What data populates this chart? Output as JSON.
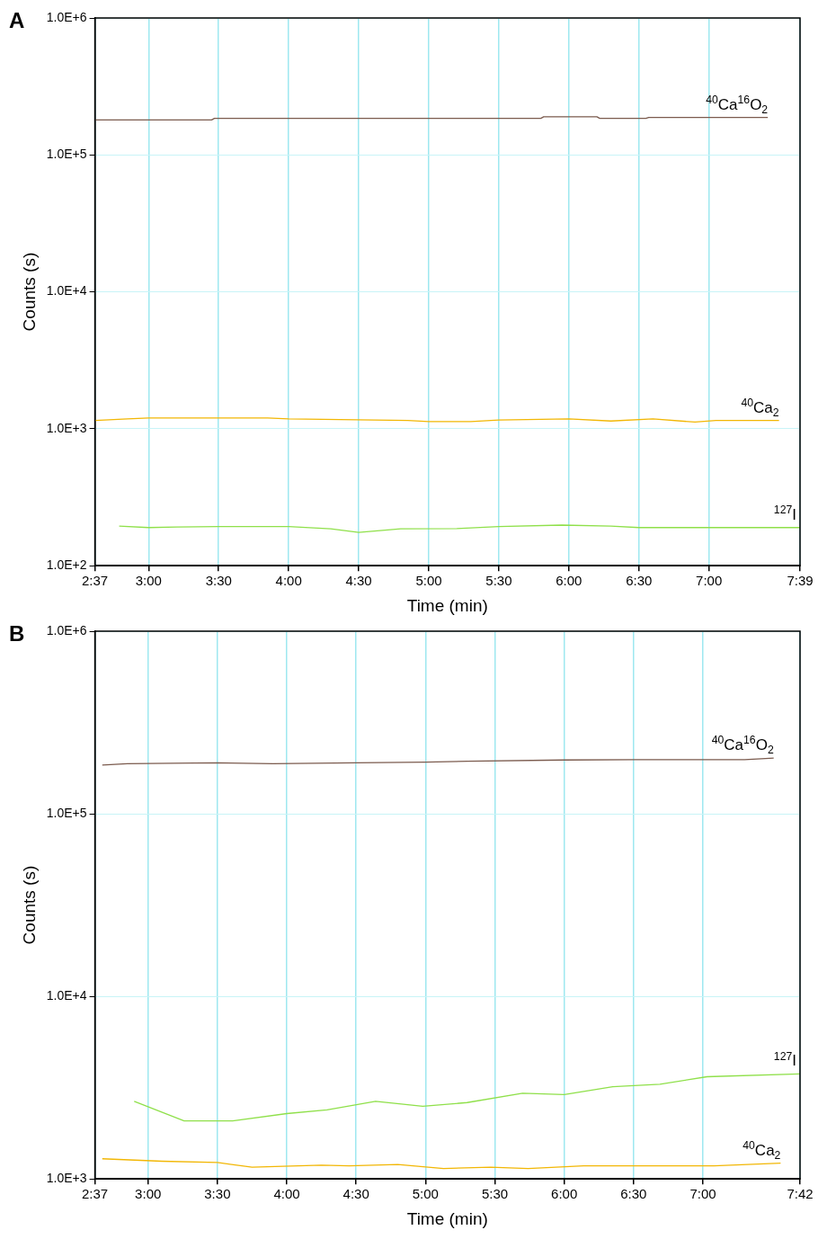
{
  "chart_data": [
    {
      "type": "line",
      "title": "A",
      "xlabel": "Time (min)",
      "ylabel": "Counts (s)",
      "log": true,
      "grid": true,
      "marker": "none",
      "xlim": [
        2.6167,
        7.65
      ],
      "xticks": [
        {
          "value": 2.6167,
          "label": "2:37"
        },
        {
          "value": 3,
          "label": "3:00"
        },
        {
          "value": 3.5,
          "label": "3:30"
        },
        {
          "value": 4,
          "label": "4:00"
        },
        {
          "value": 4.5,
          "label": "4:30"
        },
        {
          "value": 5,
          "label": "5:00"
        },
        {
          "value": 5.5,
          "label": "5:30"
        },
        {
          "value": 6,
          "label": "6:00"
        },
        {
          "value": 6.5,
          "label": "6:30"
        },
        {
          "value": 7,
          "label": "7:00"
        },
        {
          "value": 7.65,
          "label": "7:39"
        }
      ],
      "ylim": [
        100,
        1000000
      ],
      "yticks": [
        {
          "value": 100,
          "label": "1.0E+2"
        },
        {
          "value": 1000,
          "label": "1.0E+3"
        },
        {
          "value": 10000,
          "label": "1.0E+4"
        },
        {
          "value": 100000,
          "label": "1.0E+5"
        },
        {
          "value": 1000000,
          "label": "1.0E+6"
        }
      ],
      "series": [
        {
          "name": "$^{40}$Ca$^{16}$O$_{2}$",
          "color": "#7b5b4e",
          "x": [
            2.62,
            3.45,
            3.47,
            5.8,
            5.82,
            6.2,
            6.22,
            6.55,
            6.57,
            7.42
          ],
          "values": [
            180000,
            180000,
            185000,
            185000,
            190000,
            190000,
            185000,
            185000,
            188000,
            188000
          ]
        },
        {
          "name": "$^{40}$Ca$_{2}$",
          "color": "#f2b705",
          "x": [
            2.62,
            2.85,
            3.0,
            3.85,
            4.0,
            4.85,
            5.0,
            5.3,
            5.5,
            6.0,
            6.3,
            6.6,
            6.9,
            7.05,
            7.5
          ],
          "values": [
            1150,
            1180,
            1200,
            1200,
            1180,
            1150,
            1130,
            1130,
            1160,
            1180,
            1140,
            1180,
            1120,
            1150,
            1150
          ]
        },
        {
          "name": "$^{127}$I",
          "color": "#8fe04a",
          "x": [
            2.79,
            3.0,
            3.2,
            3.5,
            4.0,
            4.3,
            4.5,
            4.8,
            5.2,
            5.5,
            5.95,
            6.3,
            6.5,
            7.0,
            7.65
          ],
          "values": [
            195,
            190,
            192,
            193,
            193,
            186,
            175,
            186,
            187,
            193,
            198,
            195,
            190,
            190,
            190
          ]
        }
      ]
    },
    {
      "type": "line",
      "title": "B",
      "xlabel": "Time (min)",
      "ylabel": "Counts (s)",
      "log": true,
      "grid": true,
      "marker": "none",
      "xlim": [
        2.6167,
        7.7
      ],
      "xticks": [
        {
          "value": 2.6167,
          "label": "2:37"
        },
        {
          "value": 3,
          "label": "3:00"
        },
        {
          "value": 3.5,
          "label": "3:30"
        },
        {
          "value": 4,
          "label": "4:00"
        },
        {
          "value": 4.5,
          "label": "4:30"
        },
        {
          "value": 5,
          "label": "5:00"
        },
        {
          "value": 5.5,
          "label": "5:30"
        },
        {
          "value": 6,
          "label": "6:00"
        },
        {
          "value": 6.5,
          "label": "6:30"
        },
        {
          "value": 7,
          "label": "7:00"
        },
        {
          "value": 7.7,
          "label": "7:42"
        }
      ],
      "ylim": [
        1000,
        1000000
      ],
      "yticks": [
        {
          "value": 1000,
          "label": "1.0E+3"
        },
        {
          "value": 10000,
          "label": "1.0E+4"
        },
        {
          "value": 100000,
          "label": "1.0E+5"
        },
        {
          "value": 1000000,
          "label": "1.0E+6"
        }
      ],
      "series": [
        {
          "name": "$^{40}$Ca$^{16}$O$_{2}$",
          "color": "#7b5b4e",
          "x": [
            2.67,
            2.85,
            3.5,
            3.9,
            4.5,
            5.0,
            5.3,
            6.0,
            6.5,
            7.0,
            7.3,
            7.51
          ],
          "values": [
            185000,
            188000,
            190000,
            188000,
            190000,
            192000,
            194000,
            197000,
            198000,
            198000,
            198000,
            202000
          ]
        },
        {
          "name": "$^{127}$I",
          "color": "#8fe04a",
          "x": [
            2.9,
            3.26,
            3.61,
            4.0,
            4.29,
            4.64,
            4.98,
            5.3,
            5.7,
            6.0,
            6.35,
            6.69,
            7.03,
            7.7
          ],
          "values": [
            2660,
            2080,
            2080,
            2280,
            2390,
            2660,
            2500,
            2620,
            2950,
            2900,
            3200,
            3300,
            3630,
            3760
          ]
        },
        {
          "name": "$^{40}$Ca$_{2}$",
          "color": "#f2b705",
          "x": [
            2.67,
            3.1,
            3.5,
            3.75,
            4.25,
            4.45,
            4.8,
            5.13,
            5.47,
            5.74,
            6.14,
            7.08,
            7.56
          ],
          "values": [
            1290,
            1250,
            1230,
            1160,
            1190,
            1180,
            1200,
            1140,
            1160,
            1140,
            1180,
            1180,
            1220
          ]
        }
      ]
    }
  ]
}
